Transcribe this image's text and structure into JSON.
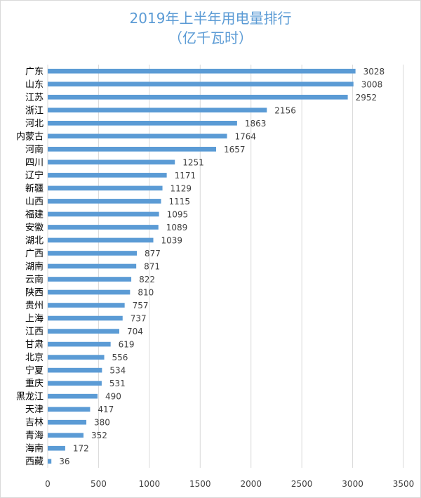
{
  "title": {
    "line1": "2019年上半年用电量排行",
    "line2": "（亿千瓦时）"
  },
  "colors": {
    "bar": "#5b9bd5",
    "title": "#5b9bd5",
    "grid": "#d9d9d9",
    "text": "#404040"
  },
  "chart_data": {
    "type": "bar",
    "orientation": "horizontal",
    "title": "2019年上半年用电量排行（亿千瓦时）",
    "categories": [
      "广东",
      "山东",
      "江苏",
      "浙江",
      "河北",
      "内蒙古",
      "河南",
      "四川",
      "辽宁",
      "新疆",
      "山西",
      "福建",
      "安徽",
      "湖北",
      "广西",
      "湖南",
      "云南",
      "陕西",
      "贵州",
      "上海",
      "江西",
      "甘肃",
      "北京",
      "宁夏",
      "重庆",
      "黑龙江",
      "天津",
      "吉林",
      "青海",
      "海南",
      "西藏"
    ],
    "values": [
      3028,
      3008,
      2952,
      2156,
      1863,
      1764,
      1657,
      1251,
      1171,
      1129,
      1115,
      1095,
      1089,
      1039,
      877,
      871,
      822,
      810,
      757,
      737,
      704,
      619,
      556,
      534,
      531,
      490,
      417,
      380,
      352,
      172,
      36
    ],
    "xlim": [
      0,
      3500
    ],
    "xticks": [
      0,
      500,
      1000,
      1500,
      2000,
      2500,
      3000,
      3500
    ],
    "grid": "vertical",
    "legend": "none"
  }
}
